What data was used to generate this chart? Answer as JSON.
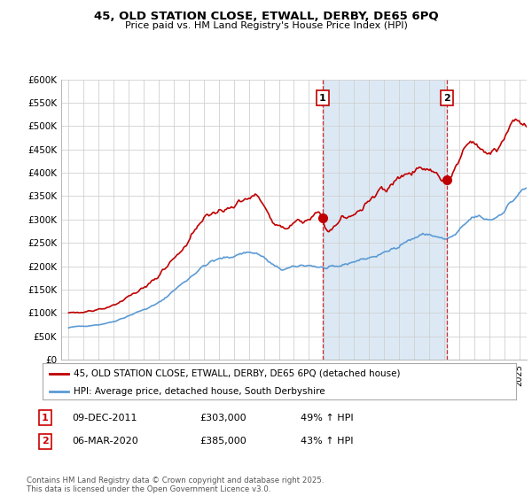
{
  "title": "45, OLD STATION CLOSE, ETWALL, DERBY, DE65 6PQ",
  "subtitle": "Price paid vs. HM Land Registry's House Price Index (HPI)",
  "ylim": [
    0,
    600000
  ],
  "yticks": [
    0,
    50000,
    100000,
    150000,
    200000,
    250000,
    300000,
    350000,
    400000,
    450000,
    500000,
    550000,
    600000
  ],
  "ytick_labels": [
    "£0",
    "£50K",
    "£100K",
    "£150K",
    "£200K",
    "£250K",
    "£300K",
    "£350K",
    "£400K",
    "£450K",
    "£500K",
    "£550K",
    "£600K"
  ],
  "hpi_color": "#5b9bd5",
  "price_color": "#c00000",
  "annotation_box_color": "#c00000",
  "plot_bg_color": "#ffffff",
  "grid_color": "#d0d0d0",
  "shade_color": "#dce9f5",
  "legend_label_price": "45, OLD STATION CLOSE, ETWALL, DERBY, DE65 6PQ (detached house)",
  "legend_label_hpi": "HPI: Average price, detached house, South Derbyshire",
  "transaction1_label": "1",
  "transaction1_date": "09-DEC-2011",
  "transaction1_price": "£303,000",
  "transaction1_hpi": "49% ↑ HPI",
  "transaction2_label": "2",
  "transaction2_date": "06-MAR-2020",
  "transaction2_price": "£385,000",
  "transaction2_hpi": "43% ↑ HPI",
  "footer": "Contains HM Land Registry data © Crown copyright and database right 2025.\nThis data is licensed under the Open Government Licence v3.0.",
  "transaction1_x": 2011.92,
  "transaction1_y": 303000,
  "transaction2_x": 2020.17,
  "transaction2_y": 385000,
  "vline1_x": 2011.92,
  "vline2_x": 2020.17,
  "xmin": 1995,
  "xmax": 2025.5
}
